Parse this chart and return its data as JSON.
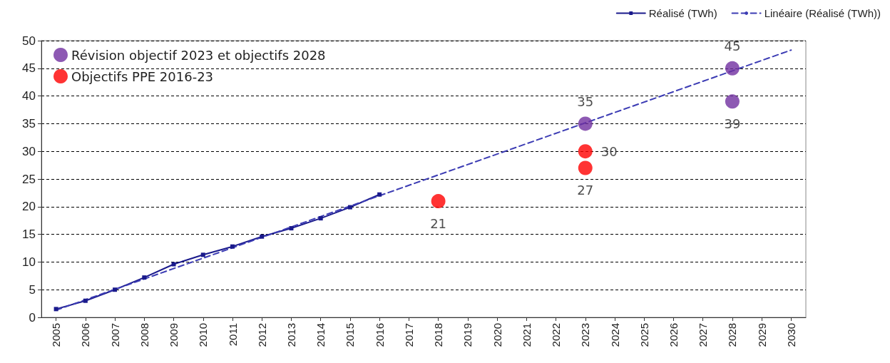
{
  "chart_data": {
    "type": "line",
    "x": [
      2005,
      2006,
      2007,
      2008,
      2009,
      2010,
      2011,
      2012,
      2013,
      2014,
      2015,
      2016
    ],
    "series": [
      {
        "name": "Réalisé (TWh)",
        "color": "#1a1a8c",
        "marker": "square",
        "line_style": "solid",
        "values": [
          1.5,
          3.0,
          5.0,
          7.2,
          9.6,
          11.3,
          12.8,
          14.6,
          16.1,
          17.9,
          19.9,
          22.2
        ]
      },
      {
        "name": "Linéaire (Réalisé (TWh))",
        "type": "line",
        "color": "#3c3cb4",
        "marker": "none",
        "line_style": "dashed",
        "x": [
          2005,
          2030
        ],
        "values": [
          1.3,
          48.3
        ]
      },
      {
        "name": "Révision objectif 2023 et objectifs 2028",
        "type": "scatter",
        "color": "#7030a0",
        "marker": "circle",
        "x": [
          2023,
          2028,
          2028
        ],
        "values": [
          35,
          45,
          39
        ],
        "value_labels": [
          "35",
          "45",
          "39"
        ]
      },
      {
        "name": "Objectifs PPE 2016-23",
        "type": "scatter",
        "color": "#ff0000",
        "marker": "circle",
        "x": [
          2018,
          2023,
          2023
        ],
        "values": [
          21,
          30,
          27
        ],
        "value_labels": [
          "21",
          "30",
          "27"
        ]
      }
    ],
    "xlim": [
      2004.5,
      2030.5
    ],
    "xticks": [
      2005,
      2006,
      2007,
      2008,
      2009,
      2010,
      2011,
      2012,
      2013,
      2014,
      2015,
      2016,
      2017,
      2018,
      2019,
      2020,
      2021,
      2022,
      2023,
      2024,
      2025,
      2026,
      2027,
      2028,
      2029,
      2030
    ],
    "ylim": [
      0,
      50
    ],
    "yticks": [
      0,
      5,
      10,
      15,
      20,
      25,
      30,
      35,
      40,
      45,
      50
    ],
    "grid": "y",
    "legend": "top right"
  }
}
